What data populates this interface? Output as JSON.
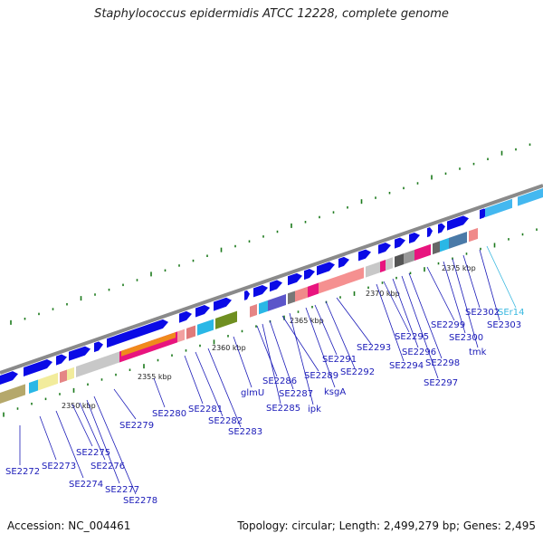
{
  "header": {
    "title": "Staphylococcus epidermidis ATCC 12228, complete genome"
  },
  "footer": {
    "accession": "Accession: NC_004461",
    "summary": "Topology: circular; Length: 2,499,279 bp; Genes: 2,495"
  },
  "map": {
    "scale_labels": [
      "2350 kbp",
      "2355 kbp",
      "2360 kbp",
      "2365 kbp",
      "2370 kbp",
      "2375 kbp"
    ],
    "gene_labels": [
      "SE2272",
      "SE2273",
      "SE2274",
      "SE2275",
      "SE2276",
      "SE2277",
      "SE2278",
      "SE2279",
      "SE2280",
      "SE2281",
      "SE2282",
      "SE2283",
      "glmU",
      "SE2286",
      "SE2285",
      "SE2287",
      "SE2289",
      "ipk",
      "ksgA",
      "SE2291",
      "SE2292",
      "SE2293",
      "SE2294",
      "SE2295",
      "SE2296",
      "SE2297",
      "SE2298",
      "SE2299",
      "SE2300",
      "tmk",
      "SE2302",
      "SE2303",
      "SEr14"
    ]
  }
}
